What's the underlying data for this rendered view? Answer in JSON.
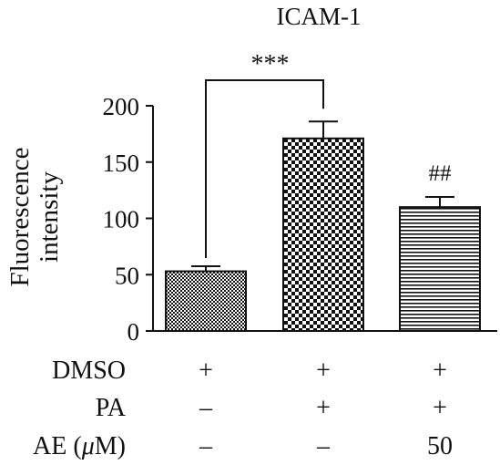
{
  "chart_data": {
    "type": "bar",
    "title": "ICAM-1",
    "ylabel": [
      "Fluorescence",
      "intensity"
    ],
    "ylim": [
      0,
      200
    ],
    "yticks": [
      0,
      50,
      100,
      150,
      200
    ],
    "categories": [
      "DMSO+ / PA− / AE −",
      "DMSO+ / PA+ / AE −",
      "DMSO+ / PA+ / AE 50"
    ],
    "values": [
      53,
      171,
      110
    ],
    "errors": [
      4.5,
      15,
      9
    ],
    "patterns": [
      "fine-checker",
      "coarse-checker",
      "horizontal-lines"
    ],
    "significance": {
      "bracket_label": "***",
      "bracket_between": [
        0,
        1
      ],
      "bar_labels": [
        "",
        "",
        "##"
      ]
    },
    "treatment_table": {
      "rows": [
        {
          "label": "DMSO",
          "values": [
            "+",
            "+",
            "+"
          ]
        },
        {
          "label": "PA",
          "values": [
            "–",
            "+",
            "+"
          ]
        },
        {
          "label_prefix": "AE (",
          "label_italic": "μ",
          "label_suffix": "M)",
          "values": [
            "–",
            "–",
            "50"
          ]
        }
      ]
    }
  }
}
